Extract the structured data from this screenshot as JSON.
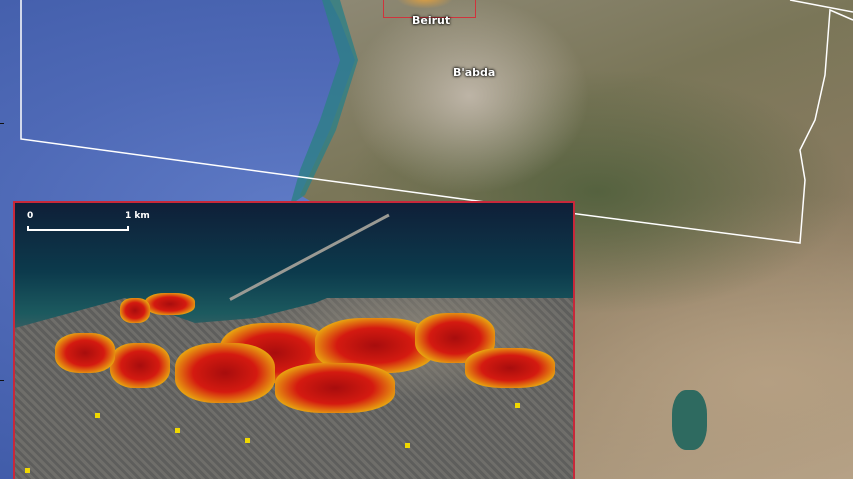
{
  "map": {
    "labels": {
      "beirut": "Beirut",
      "babda": "B'abda"
    },
    "inset": {
      "scale_start": "0",
      "scale_end": "1 km",
      "border_color": "#c8283a"
    },
    "colors": {
      "sea": "#4e69b6",
      "damage_high": "#b00e0e",
      "damage_mid": "#e04010",
      "damage_low": "#f0d800",
      "boundary": "#ffffff"
    }
  }
}
